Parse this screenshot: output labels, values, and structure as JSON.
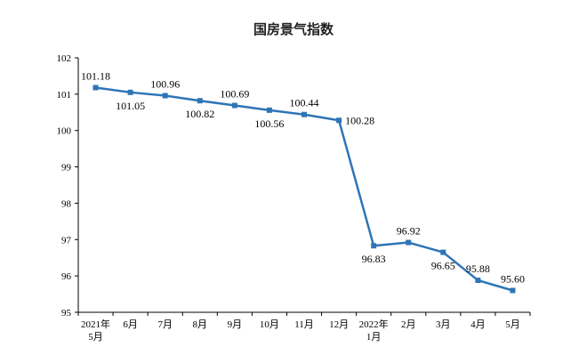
{
  "chart_data": {
    "type": "line",
    "title": "国房景气指数",
    "xlabel": "",
    "ylabel": "",
    "ylim": [
      95,
      102
    ],
    "yticks": [
      "95",
      "96",
      "97",
      "98",
      "99",
      "100",
      "101",
      "102"
    ],
    "grid": false,
    "legend": "none",
    "line_color": "#2e75b6",
    "categories": [
      [
        "2021年",
        "5月"
      ],
      [
        "6月"
      ],
      [
        "7月"
      ],
      [
        "8月"
      ],
      [
        "9月"
      ],
      [
        "10月"
      ],
      [
        "11月"
      ],
      [
        "12月"
      ],
      [
        "2022年",
        "1月"
      ],
      [
        "2月"
      ],
      [
        "3月"
      ],
      [
        "4月"
      ],
      [
        "5月"
      ]
    ],
    "values": [
      101.18,
      101.05,
      100.96,
      100.82,
      100.69,
      100.56,
      100.44,
      100.28,
      96.83,
      96.92,
      96.65,
      95.88,
      95.6
    ],
    "data_labels": [
      "101.18",
      "101.05",
      "100.96",
      "100.82",
      "100.69",
      "100.56",
      "100.44",
      "100.28",
      "96.83",
      "96.92",
      "96.65",
      "95.88",
      "95.60"
    ],
    "label_positions": [
      "above",
      "below",
      "above",
      "below",
      "above",
      "below",
      "above",
      "right",
      "below",
      "above",
      "below",
      "above",
      "above"
    ]
  }
}
